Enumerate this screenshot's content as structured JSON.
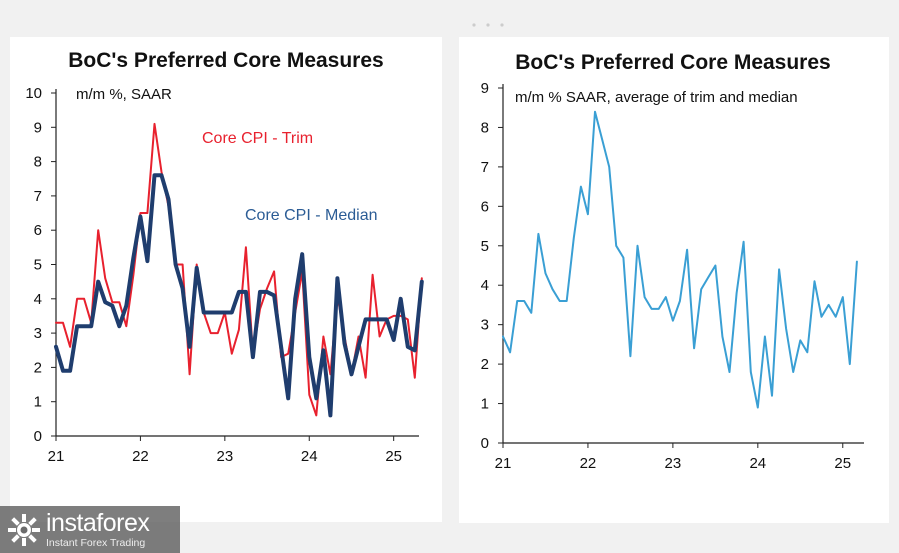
{
  "colors": {
    "trim": "#e8212e",
    "median": "#1f3d6e",
    "average": "#3a9fd4",
    "axis": "#222222",
    "median_label": "#2b5c95"
  },
  "chart_data": [
    {
      "type": "line",
      "title": "BoC's Preferred Core Measures",
      "subtitle": "m/m %, SAAR",
      "xlim": [
        2021.0,
        2025.3
      ],
      "ylim": [
        0,
        10
      ],
      "yticks": [
        0,
        1,
        2,
        3,
        4,
        5,
        6,
        7,
        8,
        9,
        10
      ],
      "xticks": [
        {
          "value": 2021,
          "label": "21"
        },
        {
          "value": 2022,
          "label": "22"
        },
        {
          "value": 2023,
          "label": "23"
        },
        {
          "value": 2024,
          "label": "24"
        },
        {
          "value": 2025,
          "label": "25"
        }
      ],
      "grid": false,
      "series": [
        {
          "name": "Core CPI - Trim",
          "color_key": "trim",
          "stroke": 2,
          "points": [
            [
              2021.0,
              3.3
            ],
            [
              2021.083,
              3.3
            ],
            [
              2021.167,
              2.6
            ],
            [
              2021.25,
              4.0
            ],
            [
              2021.333,
              4.0
            ],
            [
              2021.417,
              3.3
            ],
            [
              2021.5,
              6.0
            ],
            [
              2021.583,
              4.6
            ],
            [
              2021.667,
              3.9
            ],
            [
              2021.75,
              3.9
            ],
            [
              2021.833,
              3.2
            ],
            [
              2021.917,
              4.7
            ],
            [
              2022.0,
              6.5
            ],
            [
              2022.083,
              6.5
            ],
            [
              2022.167,
              9.1
            ],
            [
              2022.25,
              7.7
            ],
            [
              2022.333,
              6.7
            ],
            [
              2022.417,
              5.0
            ],
            [
              2022.5,
              5.0
            ],
            [
              2022.583,
              1.8
            ],
            [
              2022.667,
              5.0
            ],
            [
              2022.75,
              3.6
            ],
            [
              2022.833,
              3.0
            ],
            [
              2022.917,
              3.0
            ],
            [
              2023.0,
              3.6
            ],
            [
              2023.083,
              2.4
            ],
            [
              2023.167,
              3.1
            ],
            [
              2023.25,
              5.5
            ],
            [
              2023.333,
              2.4
            ],
            [
              2023.417,
              3.7
            ],
            [
              2023.5,
              4.3
            ],
            [
              2023.583,
              4.8
            ],
            [
              2023.667,
              2.3
            ],
            [
              2023.75,
              2.4
            ],
            [
              2023.833,
              3.6
            ],
            [
              2023.917,
              4.8
            ],
            [
              2024.0,
              1.2
            ],
            [
              2024.083,
              0.6
            ],
            [
              2024.167,
              2.9
            ],
            [
              2024.25,
              1.8
            ],
            [
              2024.333,
              4.1
            ],
            [
              2024.417,
              2.9
            ],
            [
              2024.5,
              1.8
            ],
            [
              2024.583,
              2.9
            ],
            [
              2024.667,
              1.7
            ],
            [
              2024.75,
              4.7
            ],
            [
              2024.833,
              2.9
            ],
            [
              2024.917,
              3.4
            ],
            [
              2025.0,
              3.5
            ],
            [
              2025.083,
              3.5
            ],
            [
              2025.167,
              3.4
            ],
            [
              2025.25,
              1.7
            ],
            [
              2025.333,
              4.6
            ]
          ]
        },
        {
          "name": "Core CPI - Median",
          "color_key": "median",
          "stroke": 4,
          "points": [
            [
              2021.0,
              2.6
            ],
            [
              2021.083,
              1.9
            ],
            [
              2021.167,
              1.9
            ],
            [
              2021.25,
              3.2
            ],
            [
              2021.333,
              3.2
            ],
            [
              2021.417,
              3.2
            ],
            [
              2021.5,
              4.5
            ],
            [
              2021.583,
              3.9
            ],
            [
              2021.667,
              3.8
            ],
            [
              2021.75,
              3.2
            ],
            [
              2021.833,
              3.8
            ],
            [
              2021.917,
              5.2
            ],
            [
              2022.0,
              6.4
            ],
            [
              2022.083,
              5.1
            ],
            [
              2022.167,
              7.6
            ],
            [
              2022.25,
              7.6
            ],
            [
              2022.333,
              6.9
            ],
            [
              2022.417,
              5.0
            ],
            [
              2022.5,
              4.3
            ],
            [
              2022.583,
              2.6
            ],
            [
              2022.667,
              4.9
            ],
            [
              2022.75,
              3.6
            ],
            [
              2022.833,
              3.6
            ],
            [
              2022.917,
              3.6
            ],
            [
              2023.0,
              3.6
            ],
            [
              2023.083,
              3.6
            ],
            [
              2023.167,
              4.2
            ],
            [
              2023.25,
              4.2
            ],
            [
              2023.333,
              2.3
            ],
            [
              2023.417,
              4.2
            ],
            [
              2023.5,
              4.2
            ],
            [
              2023.583,
              4.1
            ],
            [
              2023.667,
              2.6
            ],
            [
              2023.75,
              1.1
            ],
            [
              2023.833,
              4.0
            ],
            [
              2023.917,
              5.3
            ],
            [
              2024.0,
              2.3
            ],
            [
              2024.083,
              1.1
            ],
            [
              2024.167,
              2.5
            ],
            [
              2024.25,
              0.6
            ],
            [
              2024.333,
              4.6
            ],
            [
              2024.417,
              2.7
            ],
            [
              2024.5,
              1.8
            ],
            [
              2024.583,
              2.6
            ],
            [
              2024.667,
              3.4
            ],
            [
              2024.75,
              3.4
            ],
            [
              2024.833,
              3.4
            ],
            [
              2024.917,
              3.4
            ],
            [
              2025.0,
              2.8
            ],
            [
              2025.083,
              4.0
            ],
            [
              2025.167,
              2.6
            ],
            [
              2025.25,
              2.5
            ],
            [
              2025.333,
              4.5
            ]
          ]
        }
      ],
      "labels": [
        {
          "text": "Core CPI - Trim",
          "series": 0
        },
        {
          "text": "Core CPI - Median",
          "series": 1
        }
      ]
    },
    {
      "type": "line",
      "title": "BoC's Preferred Core Measures",
      "subtitle": "m/m % SAAR, average of trim and median",
      "xlim": [
        2021.0,
        2025.25
      ],
      "ylim": [
        0,
        9
      ],
      "yticks": [
        0,
        1,
        2,
        3,
        4,
        5,
        6,
        7,
        8,
        9
      ],
      "xticks": [
        {
          "value": 2021,
          "label": "21"
        },
        {
          "value": 2022,
          "label": "22"
        },
        {
          "value": 2023,
          "label": "23"
        },
        {
          "value": 2024,
          "label": "24"
        },
        {
          "value": 2025,
          "label": "25"
        }
      ],
      "grid": false,
      "series": [
        {
          "color_key": "average",
          "stroke": 2,
          "points": [
            [
              2021.0,
              2.7
            ],
            [
              2021.083,
              2.3
            ],
            [
              2021.167,
              3.6
            ],
            [
              2021.25,
              3.6
            ],
            [
              2021.333,
              3.3
            ],
            [
              2021.417,
              5.3
            ],
            [
              2021.5,
              4.3
            ],
            [
              2021.583,
              3.9
            ],
            [
              2021.667,
              3.6
            ],
            [
              2021.75,
              3.6
            ],
            [
              2021.833,
              5.2
            ],
            [
              2021.917,
              6.5
            ],
            [
              2022.0,
              5.8
            ],
            [
              2022.083,
              8.4
            ],
            [
              2022.167,
              7.7
            ],
            [
              2022.25,
              7.0
            ],
            [
              2022.333,
              5.0
            ],
            [
              2022.417,
              4.7
            ],
            [
              2022.5,
              2.2
            ],
            [
              2022.583,
              5.0
            ],
            [
              2022.667,
              3.7
            ],
            [
              2022.75,
              3.4
            ],
            [
              2022.833,
              3.4
            ],
            [
              2022.917,
              3.7
            ],
            [
              2023.0,
              3.1
            ],
            [
              2023.083,
              3.6
            ],
            [
              2023.167,
              4.9
            ],
            [
              2023.25,
              2.4
            ],
            [
              2023.333,
              3.9
            ],
            [
              2023.417,
              4.2
            ],
            [
              2023.5,
              4.5
            ],
            [
              2023.583,
              2.7
            ],
            [
              2023.667,
              1.8
            ],
            [
              2023.75,
              3.8
            ],
            [
              2023.833,
              5.1
            ],
            [
              2023.917,
              1.8
            ],
            [
              2024.0,
              0.9
            ],
            [
              2024.083,
              2.7
            ],
            [
              2024.167,
              1.2
            ],
            [
              2024.25,
              4.4
            ],
            [
              2024.333,
              2.9
            ],
            [
              2024.417,
              1.8
            ],
            [
              2024.5,
              2.6
            ],
            [
              2024.583,
              2.3
            ],
            [
              2024.667,
              4.1
            ],
            [
              2024.75,
              3.2
            ],
            [
              2024.833,
              3.5
            ],
            [
              2024.917,
              3.2
            ],
            [
              2025.0,
              3.7
            ],
            [
              2025.083,
              2.0
            ],
            [
              2025.167,
              4.6
            ]
          ]
        }
      ]
    }
  ],
  "watermark": {
    "brand": "instaforex",
    "tagline": "Instant Forex Trading"
  }
}
